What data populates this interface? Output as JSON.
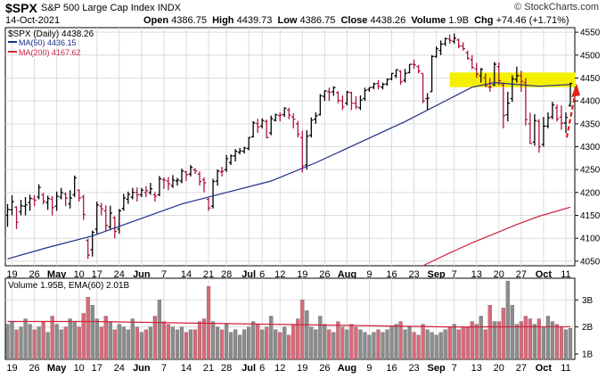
{
  "header": {
    "symbol": "$SPX",
    "name": "S&P 500 Large Cap Index",
    "exchange": "INDX",
    "date": "14-Oct-2021",
    "open_label": "Open",
    "open": "4386.75",
    "high_label": "High",
    "high": "4439.73",
    "low_label": "Low",
    "low": "4386.75",
    "close_label": "Close",
    "close": "4438.26",
    "volume_label": "Volume",
    "volume": "1.9B",
    "chg_label": "Chg",
    "chg": "+74.46 (+1.71%)",
    "brand": "© StockCharts.com"
  },
  "legend": {
    "price": "$SPX (Daily) 4438.26",
    "ma50": "MA(50) 4436.15",
    "ma200": "MA(200) 4167.62",
    "volume": "Volume 1.95B, EMA(60) 2.01B"
  },
  "colors": {
    "up": "#000000",
    "down": "#b0133a",
    "ma50": "#1c2f8c",
    "ma200": "#d0223f",
    "highlight": "#f5f000",
    "vol_up": "#8c8c8c",
    "vol_down": "#d96a79",
    "arrow": "#e0221c",
    "grid": "#dcdcdc"
  },
  "chart_data": [
    {
      "type": "candlestick",
      "title": "$SPX (Daily) 4438.26",
      "ylim": [
        4040,
        4560
      ],
      "y_ticks": [
        4050,
        4100,
        4150,
        4200,
        4250,
        4300,
        4350,
        4400,
        4450,
        4500,
        4550
      ],
      "x_tick_labels": [
        "19",
        "26",
        "May",
        "10",
        "17",
        "24",
        "Jun",
        "7",
        "14",
        "21",
        "28",
        "Jul",
        "6",
        "12",
        "19",
        "26",
        "Aug",
        "9",
        "16",
        "23",
        "Sep",
        "7",
        "13",
        "20",
        "27",
        "Oct",
        "11"
      ],
      "x_tick_bold": [
        "May",
        "Jun",
        "Jul",
        "Aug",
        "Sep",
        "Oct"
      ],
      "grid": true,
      "annotations": [
        "yellow resistance band 4430-4460",
        "red dashed upward arrow on last bar"
      ],
      "series": [
        {
          "name": "$SPX",
          "x": [
            1,
            2,
            3,
            4,
            5,
            6,
            7,
            8,
            9,
            10,
            11,
            12,
            13,
            14,
            15,
            16,
            17,
            18,
            19,
            20,
            21,
            22,
            23,
            24,
            25,
            26,
            27,
            28,
            29,
            30,
            31,
            32,
            33,
            34,
            35,
            36,
            37,
            38,
            39,
            40,
            41,
            42,
            43,
            44,
            45,
            46,
            47,
            48,
            49,
            50,
            51,
            52,
            53,
            54,
            55,
            56,
            57,
            58,
            59,
            60,
            61,
            62,
            63,
            64,
            65,
            66,
            67,
            68,
            69,
            70,
            71,
            72,
            73,
            74,
            75,
            76,
            77,
            78,
            79,
            80,
            81,
            82,
            83,
            84,
            85,
            86,
            87,
            88,
            89,
            90,
            91,
            92,
            93,
            94,
            95,
            96,
            97,
            98,
            99,
            100,
            101,
            102,
            103,
            104,
            105,
            106,
            107,
            108,
            109,
            110,
            111,
            112,
            113,
            114,
            115,
            116,
            117,
            118,
            119,
            120,
            121,
            122,
            123,
            124,
            125,
            126,
            127
          ],
          "close": [
            4163,
            4180,
            4135,
            4171,
            4173,
            4187,
            4183,
            4211,
            4181,
            4187,
            4167,
            4192,
            4200,
            4188,
            4188,
            4232,
            4188,
            4152,
            4063,
            4113,
            4173,
            4164,
            4128,
            4155,
            4115,
            4160,
            4188,
            4196,
            4200,
            4195,
            4205,
            4204,
            4208,
            4192,
            4230,
            4227,
            4219,
            4227,
            4227,
            4247,
            4239,
            4255,
            4247,
            4224,
            4221,
            4166,
            4224,
            4247,
            4246,
            4274,
            4280,
            4290,
            4291,
            4297,
            4320,
            4352,
            4343,
            4357,
            4320,
            4361,
            4370,
            4369,
            4384,
            4369,
            4360,
            4327,
            4258,
            4323,
            4358,
            4367,
            4411,
            4422,
            4419,
            4429,
            4401,
            4387,
            4419,
            4395,
            4387,
            4402,
            4423,
            4429,
            4437,
            4432,
            4436,
            4447,
            4460,
            4468,
            4442,
            4460,
            4480,
            4479,
            4465,
            4400,
            4406,
            4497,
            4514,
            4524,
            4536,
            4532,
            4537,
            4520,
            4514,
            4493,
            4473,
            4459,
            4469,
            4433,
            4430,
            4480,
            4444,
            4368,
            4395,
            4448,
            4455,
            4443,
            4359,
            4307,
            4357,
            4300,
            4345,
            4363,
            4391,
            4361,
            4351,
            4364,
            4438
          ],
          "ohlc_note": "daily OHLC bars; open/high/low approximate around close",
          "high": [
            4175,
            4194,
            4170,
            4184,
            4190,
            4195,
            4194,
            4218,
            4199,
            4193,
            4192,
            4202,
            4210,
            4200,
            4205,
            4237,
            4207,
            4195,
            4099,
            4117,
            4180,
            4177,
            4172,
            4171,
            4148,
            4164,
            4197,
            4202,
            4210,
            4211,
            4210,
            4214,
            4221,
            4201,
            4236,
            4233,
            4234,
            4238,
            4232,
            4252,
            4247,
            4260,
            4253,
            4246,
            4233,
            4188,
            4230,
            4250,
            4256,
            4282,
            4283,
            4295,
            4297,
            4300,
            4321,
            4356,
            4361,
            4362,
            4359,
            4368,
            4372,
            4375,
            4386,
            4385,
            4373,
            4356,
            4335,
            4336,
            4364,
            4375,
            4415,
            4423,
            4429,
            4432,
            4421,
            4412,
            4422,
            4420,
            4410,
            4412,
            4429,
            4430,
            4440,
            4445,
            4440,
            4449,
            4461,
            4469,
            4467,
            4470,
            4480,
            4490,
            4478,
            4460,
            4417,
            4500,
            4519,
            4532,
            4538,
            4545,
            4547,
            4536,
            4528,
            4510,
            4500,
            4483,
            4472,
            4460,
            4450,
            4485,
            4484,
            4440,
            4420,
            4456,
            4475,
            4466,
            4450,
            4374,
            4371,
            4360,
            4365,
            4375,
            4398,
            4392,
            4390,
            4375,
            4440
          ],
          "low": [
            4125,
            4150,
            4120,
            4150,
            4150,
            4160,
            4170,
            4185,
            4174,
            4162,
            4150,
            4160,
            4185,
            4170,
            4165,
            4190,
            4180,
            4140,
            4055,
            4060,
            4110,
            4150,
            4115,
            4120,
            4100,
            4110,
            4160,
            4175,
            4185,
            4180,
            4190,
            4190,
            4195,
            4180,
            4192,
            4208,
            4205,
            4210,
            4215,
            4220,
            4225,
            4235,
            4240,
            4215,
            4200,
            4160,
            4165,
            4215,
            4235,
            4245,
            4260,
            4268,
            4283,
            4285,
            4292,
            4320,
            4330,
            4340,
            4318,
            4325,
            4355,
            4355,
            4365,
            4360,
            4340,
            4320,
            4244,
            4250,
            4320,
            4350,
            4368,
            4400,
            4400,
            4411,
            4395,
            4380,
            4390,
            4380,
            4382,
            4380,
            4400,
            4420,
            4425,
            4425,
            4425,
            4433,
            4445,
            4450,
            4435,
            4440,
            4460,
            4470,
            4460,
            4395,
            4380,
            4420,
            4494,
            4500,
            4520,
            4525,
            4525,
            4515,
            4510,
            4490,
            4470,
            4450,
            4440,
            4430,
            4420,
            4432,
            4434,
            4340,
            4355,
            4398,
            4440,
            4420,
            4346,
            4306,
            4302,
            4287,
            4300,
            4340,
            4360,
            4355,
            4337,
            4330,
            4387
          ],
          "open": [
            4150,
            4162,
            4168,
            4158,
            4170,
            4178,
            4186,
            4190,
            4195,
            4178,
            4185,
            4170,
            4190,
            4197,
            4175,
            4195,
            4205,
            4190,
            4095,
            4075,
            4120,
            4170,
            4160,
            4125,
            4145,
            4120,
            4165,
            4185,
            4190,
            4200,
            4195,
            4200,
            4200,
            4195,
            4195,
            4228,
            4225,
            4215,
            4225,
            4225,
            4245,
            4240,
            4250,
            4240,
            4228,
            4185,
            4170,
            4225,
            4245,
            4250,
            4265,
            4280,
            4288,
            4290,
            4296,
            4322,
            4350,
            4345,
            4355,
            4330,
            4358,
            4368,
            4370,
            4380,
            4365,
            4350,
            4320,
            4260,
            4325,
            4360,
            4370,
            4410,
            4420,
            4420,
            4418,
            4400,
            4395,
            4418,
            4395,
            4385,
            4405,
            4425,
            4430,
            4438,
            4430,
            4437,
            4448,
            4455,
            4465,
            4445,
            4462,
            4480,
            4475,
            4460,
            4405,
            4420,
            4497,
            4510,
            4525,
            4535,
            4530,
            4533,
            4520,
            4505,
            4490,
            4470,
            4455,
            4450,
            4430,
            4435,
            4475,
            4435,
            4370,
            4405,
            4447,
            4455,
            4440,
            4350,
            4310,
            4355,
            4305,
            4345,
            4365,
            4385,
            4365,
            4352,
            4390
          ]
        },
        {
          "name": "MA(50)",
          "x": [
            1,
            10,
            20,
            30,
            40,
            50,
            60,
            70,
            80,
            90,
            100,
            105,
            110,
            115,
            120,
            127
          ],
          "values": [
            4055,
            4080,
            4105,
            4140,
            4175,
            4200,
            4225,
            4265,
            4310,
            4355,
            4405,
            4430,
            4440,
            4436,
            4432,
            4436
          ]
        },
        {
          "name": "MA(200)",
          "x": [
            94,
            100,
            105,
            110,
            115,
            120,
            127
          ],
          "values": [
            4040,
            4068,
            4090,
            4110,
            4130,
            4148,
            4168
          ]
        }
      ]
    },
    {
      "type": "bar",
      "title": "Volume 1.95B, EMA(60) 2.01B",
      "ylim": [
        0.8,
        3.8
      ],
      "y_tick_labels": [
        "1B",
        "2B",
        "3B"
      ],
      "y_ticks": [
        1,
        2,
        3
      ],
      "series": [
        {
          "name": "Volume",
          "unit": "B",
          "values": [
            2.1,
            2.2,
            1.9,
            2.0,
            2.3,
            2.1,
            1.9,
            2.0,
            2.2,
            1.8,
            2.4,
            2.1,
            1.9,
            2.0,
            2.3,
            2.2,
            2.0,
            2.5,
            3.1,
            2.8,
            2.3,
            2.0,
            2.4,
            2.2,
            1.9,
            2.1,
            2.0,
            1.9,
            2.3,
            2.0,
            1.8,
            1.9,
            2.0,
            2.4,
            3.0,
            2.2,
            2.1,
            2.0,
            1.9,
            2.0,
            1.8,
            1.9,
            1.9,
            2.2,
            2.3,
            3.5,
            2.2,
            2.0,
            1.9,
            2.1,
            1.8,
            1.9,
            1.7,
            1.9,
            2.0,
            2.2,
            2.1,
            1.9,
            2.0,
            2.4,
            1.9,
            1.8,
            2.0,
            1.7,
            2.1,
            2.3,
            3.0,
            2.6,
            2.0,
            1.9,
            2.4,
            2.1,
            1.9,
            1.8,
            2.2,
            2.0,
            1.9,
            2.1,
            2.0,
            1.9,
            1.8,
            1.7,
            1.8,
            1.9,
            1.8,
            1.9,
            2.0,
            2.1,
            2.2,
            1.9,
            2.0,
            1.8,
            1.7,
            2.1,
            1.9,
            1.8,
            1.7,
            1.8,
            1.9,
            2.0,
            2.1,
            1.9,
            2.0,
            2.0,
            2.2,
            2.1,
            2.4,
            1.9,
            2.8,
            2.2,
            2.2,
            2.7,
            3.7,
            2.8,
            2.1,
            2.2,
            2.4,
            2.3,
            2.1,
            2.3,
            2.0,
            2.4,
            2.2,
            2.1,
            2.0,
            1.9,
            1.95
          ]
        },
        {
          "name": "EMA(60)",
          "unit": "B",
          "x": [
            1,
            20,
            40,
            60,
            80,
            100,
            127
          ],
          "values": [
            2.2,
            2.2,
            2.15,
            2.1,
            2.05,
            2.0,
            2.01
          ]
        }
      ]
    }
  ]
}
